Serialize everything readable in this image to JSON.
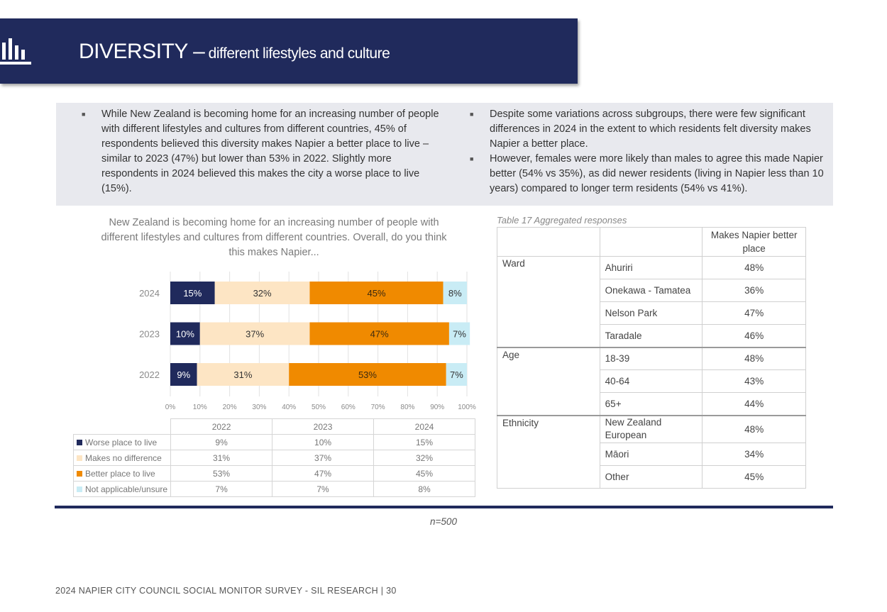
{
  "header": {
    "title_main": "DIVERSITY –",
    "title_sub": " different lifestyles and culture",
    "icon": "bar-chart-icon"
  },
  "summary": {
    "left_bullets": [
      "While New Zealand is becoming home for an increasing number of people with different lifestyles and cultures from different countries, 45% of respondents believed this diversity makes Napier a better place to live – similar to 2023 (47%) but lower than 53% in 2022. Slightly more respondents in 2024 believed this makes the city a worse place to live (15%)."
    ],
    "right_bullets": [
      "Despite some variations across subgroups, there were few significant differences in 2024 in the extent to which residents felt diversity makes Napier a better place.",
      "However, females were more likely than males to agree this made Napier better (54% vs 35%), as did newer residents (living in Napier less than 10 years) compared to longer term residents (54% vs 41%)."
    ]
  },
  "chart_data": {
    "type": "bar",
    "orientation": "horizontal",
    "stacked": true,
    "title": "New Zealand is becoming home for an increasing number of people with different lifestyles and cultures from different countries. Overall, do you think this makes Napier...",
    "categories": [
      "2024",
      "2023",
      "2022"
    ],
    "series": [
      {
        "name": "Worse place to live",
        "values": [
          15,
          10,
          9
        ],
        "labels": [
          "15%",
          "10%",
          "9%"
        ],
        "color": "#202a5c",
        "label_color": "#ffffff"
      },
      {
        "name": "Makes no difference",
        "values": [
          32,
          37,
          31
        ],
        "labels": [
          "32%",
          "37%",
          "31%"
        ],
        "color": "#fde5c4",
        "label_color": "#333333"
      },
      {
        "name": "Better place to live",
        "values": [
          45,
          47,
          53
        ],
        "labels": [
          "45%",
          "47%",
          "53%"
        ],
        "color": "#f08a00",
        "label_color": "#3d2a10"
      },
      {
        "name": "Not applicable/unsure",
        "values": [
          8,
          7,
          7
        ],
        "labels": [
          "8%",
          "7%",
          "7%"
        ],
        "color": "#c9ecf5",
        "label_color": "#333333"
      }
    ],
    "xlim": [
      0,
      100
    ],
    "xticks": [
      "0%",
      "10%",
      "20%",
      "30%",
      "40%",
      "50%",
      "60%",
      "70%",
      "80%",
      "90%",
      "100%"
    ],
    "grid": "vertical",
    "data_table": {
      "columns": [
        "2022",
        "2023",
        "2024"
      ],
      "rows": [
        {
          "label": "Worse place to live",
          "color": "#202a5c",
          "values": [
            "9%",
            "10%",
            "15%"
          ]
        },
        {
          "label": "Makes no difference",
          "color": "#fde5c4",
          "values": [
            "31%",
            "37%",
            "32%"
          ]
        },
        {
          "label": "Better place to live",
          "color": "#f08a00",
          "values": [
            "53%",
            "47%",
            "45%"
          ]
        },
        {
          "label": "Not applicable/unsure",
          "color": "#c9ecf5",
          "values": [
            "7%",
            "7%",
            "8%"
          ]
        }
      ]
    }
  },
  "agg_table": {
    "caption": "Table 17 Aggregated responses",
    "header": "Makes Napier better place",
    "groups": [
      {
        "name": "Ward",
        "rows": [
          {
            "label": "Ahuriri",
            "value": "48%"
          },
          {
            "label": "Onekawa - Tamatea",
            "value": "36%"
          },
          {
            "label": "Nelson Park",
            "value": "47%"
          },
          {
            "label": "Taradale",
            "value": "46%"
          }
        ]
      },
      {
        "name": "Age",
        "rows": [
          {
            "label": "18-39",
            "value": "48%"
          },
          {
            "label": "40-64",
            "value": "43%"
          },
          {
            "label": "65+",
            "value": "44%"
          }
        ]
      },
      {
        "name": "Ethnicity",
        "rows": [
          {
            "label": "New Zealand European",
            "value": "48%"
          },
          {
            "label": "Māori",
            "value": "34%"
          },
          {
            "label": "Other",
            "value": "45%"
          }
        ]
      }
    ]
  },
  "sample_note": "n=500",
  "footer": "2024 NAPIER CITY COUNCIL SOCIAL MONITOR SURVEY - SIL RESEARCH | 30"
}
